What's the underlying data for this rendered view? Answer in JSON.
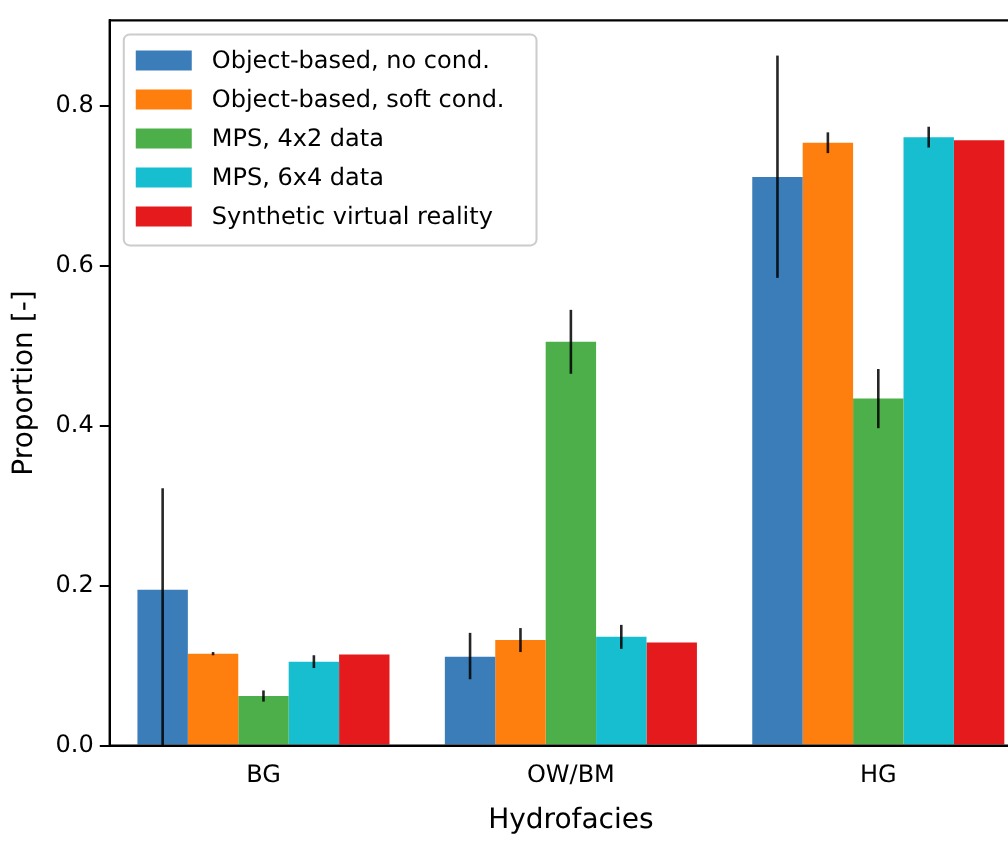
{
  "chart_data": {
    "type": "bar",
    "xlabel": "Hydrofacies",
    "ylabel": "Proportion [-]",
    "categories": [
      "BG",
      "OW/BM",
      "HG"
    ],
    "series": [
      {
        "name": "Object-based, no cond.",
        "color": "#3a7db8",
        "values": [
          0.195,
          0.111,
          0.711
        ],
        "errors": [
          [
            0,
            0.322
          ],
          [
            0.083,
            0.141
          ],
          [
            0.585,
            0.863
          ]
        ]
      },
      {
        "name": "Object-based, soft cond.",
        "color": "#ff7f0e",
        "values": [
          0.115,
          0.132,
          0.754
        ],
        "errors": [
          0.002,
          0.015,
          0.013
        ]
      },
      {
        "name": "MPS, 4x2 data",
        "color": "#4daf4a",
        "values": [
          0.062,
          0.505,
          0.434
        ],
        "errors": [
          0.007,
          0.04,
          0.037
        ]
      },
      {
        "name": "MPS, 6x4 data",
        "color": "#17becf",
        "values": [
          0.105,
          0.136,
          0.761
        ],
        "errors": [
          0.008,
          0.015,
          0.013
        ]
      },
      {
        "name": "Synthetic virtual reality",
        "color": "#e41a1c",
        "values": [
          0.114,
          0.129,
          0.757
        ]
      }
    ],
    "ylim": [
      0,
      0.907
    ],
    "yticks": [
      {
        "value": 0,
        "label": "0.0"
      },
      {
        "value": 0.2,
        "label": "0.2"
      },
      {
        "value": 0.4,
        "label": "0.4"
      },
      {
        "value": 0.6,
        "label": "0.6"
      },
      {
        "value": 0.8,
        "label": "0.8"
      }
    ],
    "grid": false,
    "legend": "top left"
  }
}
